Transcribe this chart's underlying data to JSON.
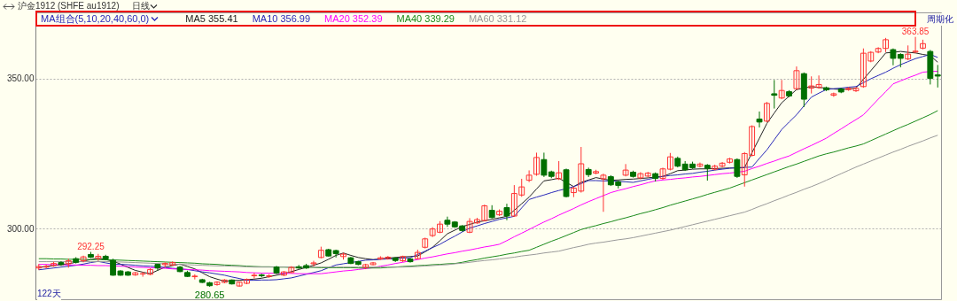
{
  "chart_data": {
    "type": "candlestick",
    "title": "沪金1912 (SHFE au1912)",
    "subtitle": "日线",
    "legend_title": "MA组合(5,10,20,40,60,0)",
    "legend": "top left",
    "tick_labels": "y",
    "grid": "y",
    "ylim": [
      276.5,
      372
    ],
    "yticks": [
      {
        "value": 300,
        "label": "300.00"
      },
      {
        "value": 350,
        "label": "350.00"
      }
    ],
    "annotations": [
      "周期化",
      "122天",
      {
        "text": "292.25",
        "y": 292.25
      },
      {
        "text": "280.65",
        "y": 280.65
      },
      {
        "text": "363.85",
        "y": 363.85
      }
    ],
    "categories": [
      null,
      null,
      null,
      null,
      null,
      null,
      null,
      null,
      null,
      null,
      null,
      null,
      null,
      null,
      null,
      null,
      null,
      null,
      null,
      null,
      null,
      null,
      null,
      null,
      null,
      null,
      null,
      null,
      null,
      null,
      null,
      null,
      null,
      null,
      null,
      null,
      null,
      null,
      null,
      null,
      null,
      null,
      null,
      null,
      null,
      null,
      null,
      null,
      null,
      null,
      null,
      null,
      null,
      null,
      null,
      null,
      null,
      null,
      null,
      null,
      null,
      null,
      null,
      null,
      null,
      null,
      null,
      null,
      null,
      null,
      null,
      null,
      null,
      null,
      null,
      null,
      null,
      null,
      null,
      null,
      null,
      null,
      null,
      null,
      null,
      null,
      null,
      null,
      null,
      null,
      null,
      null,
      null,
      null,
      null,
      null,
      null,
      null,
      null,
      null,
      null,
      null,
      null,
      null,
      null,
      null,
      null,
      null,
      null,
      null,
      null,
      null,
      null,
      null,
      null,
      null,
      null,
      null,
      null,
      null,
      null,
      null
    ],
    "ohlc": [
      [
        286.9,
        288.2,
        286.2,
        287.4
      ],
      [
        287.2,
        288.0,
        286.8,
        287.4
      ],
      [
        287.7,
        289.0,
        287.3,
        288.4
      ],
      [
        288.7,
        289.2,
        287.6,
        288.0
      ],
      [
        288.3,
        290.0,
        287.0,
        289.3
      ],
      [
        290.0,
        290.5,
        288.4,
        288.8
      ],
      [
        289.3,
        291.0,
        288.8,
        290.6
      ],
      [
        291.4,
        292.25,
        290.2,
        290.5
      ],
      [
        290.1,
        291.6,
        289.3,
        290.8
      ],
      [
        290.8,
        291.3,
        289.5,
        289.9
      ],
      [
        289.4,
        290.0,
        284.3,
        284.5
      ],
      [
        285.9,
        286.2,
        284.3,
        284.5
      ],
      [
        285.6,
        285.9,
        284.3,
        284.5
      ],
      [
        284.6,
        285.6,
        284.3,
        285.3
      ],
      [
        284.9,
        285.6,
        284.0,
        285.0
      ],
      [
        284.8,
        286.8,
        284.5,
        286.4
      ],
      [
        288.1,
        288.3,
        286.0,
        286.9
      ],
      [
        288.0,
        288.8,
        287.1,
        288.4
      ],
      [
        287.9,
        289.1,
        287.6,
        288.7
      ],
      [
        287.2,
        287.6,
        285.5,
        285.7
      ],
      [
        285.4,
        286.0,
        283.9,
        284.1
      ],
      [
        284.0,
        284.8,
        283.1,
        284.2
      ],
      [
        283.0,
        283.3,
        281.9,
        282.1
      ],
      [
        282.0,
        282.3,
        280.65,
        281.0
      ],
      [
        281.4,
        282.5,
        281.0,
        282.2
      ],
      [
        282.1,
        283.2,
        281.8,
        282.9
      ],
      [
        282.9,
        283.1,
        281.4,
        281.6
      ],
      [
        280.9,
        282.4,
        280.7,
        282.2
      ],
      [
        281.8,
        283.4,
        281.5,
        283.1
      ],
      [
        284.3,
        285.3,
        283.4,
        284.5
      ],
      [
        284.6,
        285.0,
        283.8,
        284.3
      ],
      [
        284.1,
        284.9,
        283.6,
        284.3
      ],
      [
        287.2,
        287.6,
        284.9,
        285.2
      ],
      [
        284.5,
        285.9,
        284.2,
        285.6
      ],
      [
        285.4,
        287.5,
        285.2,
        287.1
      ],
      [
        287.3,
        287.9,
        286.6,
        286.9
      ],
      [
        287.7,
        288.3,
        286.6,
        286.9
      ],
      [
        288.3,
        289.3,
        287.4,
        288.6
      ],
      [
        290.4,
        294.0,
        290.1,
        292.8
      ],
      [
        293.0,
        293.3,
        290.7,
        290.9
      ],
      [
        292.7,
        293.0,
        290.4,
        291.7
      ],
      [
        290.7,
        292.0,
        289.7,
        291.5
      ],
      [
        290.3,
        290.6,
        288.2,
        288.4
      ],
      [
        289.0,
        289.3,
        287.8,
        288.1
      ],
      [
        287.1,
        288.3,
        286.5,
        288.0
      ],
      [
        288.0,
        288.9,
        287.8,
        288.6
      ],
      [
        289.9,
        290.8,
        289.6,
        290.3
      ],
      [
        290.0,
        290.9,
        289.7,
        290.5
      ],
      [
        290.2,
        290.5,
        288.9,
        289.4
      ],
      [
        289.3,
        291.0,
        288.9,
        290.7
      ],
      [
        289.9,
        290.2,
        288.7,
        289.0
      ],
      [
        290.0,
        293.0,
        289.8,
        292.1
      ],
      [
        293.8,
        297.0,
        293.4,
        296.6
      ],
      [
        297.7,
        300.5,
        297.2,
        299.9
      ],
      [
        298.8,
        302.5,
        298.5,
        301.5
      ],
      [
        302.8,
        304.0,
        300.6,
        301.5
      ],
      [
        302.2,
        302.5,
        300.3,
        300.6
      ],
      [
        300.9,
        301.2,
        299.0,
        299.4
      ],
      [
        298.8,
        303.5,
        298.5,
        302.4
      ],
      [
        301.9,
        303.6,
        301.6,
        303.0
      ],
      [
        302.7,
        308.0,
        302.4,
        307.6
      ],
      [
        306.1,
        307.8,
        303.4,
        303.7
      ],
      [
        304.6,
        306.4,
        304.2,
        305.8
      ],
      [
        307.0,
        308.3,
        302.8,
        304.2
      ],
      [
        304.2,
        314.5,
        303.9,
        311.7
      ],
      [
        311.2,
        316.6,
        310.6,
        313.9
      ],
      [
        316.1,
        319.4,
        315.5,
        317.8
      ],
      [
        318.1,
        325.3,
        317.6,
        323.7
      ],
      [
        323.0,
        325.3,
        317.2,
        317.8
      ],
      [
        318.9,
        319.3,
        316.8,
        317.4
      ],
      [
        316.6,
        322.5,
        316.2,
        318.6
      ],
      [
        319.6,
        320.0,
        310.4,
        310.7
      ],
      [
        312.0,
        314.0,
        310.5,
        313.5
      ],
      [
        312.5,
        327.2,
        312.0,
        321.6
      ],
      [
        319.7,
        320.3,
        317.2,
        318.0
      ],
      [
        318.5,
        319.6,
        318.1,
        319.0
      ],
      [
        316.6,
        318.3,
        305.6,
        317.8
      ],
      [
        317.3,
        317.8,
        314.2,
        314.6
      ],
      [
        315.6,
        316.0,
        313.4,
        314.4
      ],
      [
        317.8,
        321.5,
        317.4,
        319.5
      ],
      [
        318.8,
        319.3,
        317.0,
        317.4
      ],
      [
        316.9,
        318.8,
        316.4,
        318.3
      ],
      [
        317.5,
        318.9,
        317.1,
        318.5
      ],
      [
        318.3,
        318.7,
        315.7,
        316.7
      ],
      [
        316.7,
        320.3,
        316.3,
        319.9
      ],
      [
        319.8,
        325.2,
        319.4,
        323.9
      ],
      [
        323.4,
        324.0,
        320.4,
        320.8
      ],
      [
        321.5,
        322.5,
        319.2,
        319.6
      ],
      [
        321.5,
        322.3,
        319.9,
        320.3
      ],
      [
        320.8,
        322.0,
        320.4,
        321.5
      ],
      [
        321.1,
        321.5,
        316.0,
        320.1
      ],
      [
        319.8,
        321.3,
        319.4,
        320.8
      ],
      [
        320.8,
        322.2,
        320.4,
        321.8
      ],
      [
        322.1,
        323.6,
        321.7,
        323.2
      ],
      [
        323.0,
        323.4,
        316.9,
        317.4
      ],
      [
        317.9,
        325.5,
        314.0,
        325.0
      ],
      [
        324.4,
        334.4,
        324.0,
        334.0
      ],
      [
        336.5,
        339.0,
        333.7,
        335.5
      ],
      [
        335.8,
        342.2,
        335.4,
        341.7
      ],
      [
        344.9,
        349.5,
        340.0,
        344.4
      ],
      [
        343.5,
        349.5,
        343.1,
        346.0
      ],
      [
        345.6,
        346.1,
        343.8,
        344.2
      ],
      [
        346.6,
        354.0,
        346.2,
        352.6
      ],
      [
        351.6,
        352.0,
        340.5,
        343.1
      ],
      [
        346.8,
        350.7,
        345.0,
        347.5
      ],
      [
        347.0,
        351.0,
        346.6,
        348.0
      ],
      [
        346.9,
        347.3,
        345.8,
        346.2
      ],
      [
        344.4,
        345.3,
        343.9,
        344.9
      ],
      [
        346.5,
        346.9,
        345.1,
        345.5
      ],
      [
        346.3,
        347.1,
        345.9,
        346.7
      ],
      [
        345.9,
        347.1,
        345.5,
        346.7
      ],
      [
        347.3,
        360.0,
        346.9,
        358.4
      ],
      [
        355.8,
        359.1,
        355.4,
        358.7
      ],
      [
        358.8,
        360.4,
        358.4,
        360.0
      ],
      [
        360.0,
        363.5,
        358.8,
        362.9
      ],
      [
        359.6,
        360.0,
        354.4,
        356.7
      ],
      [
        358.0,
        358.4,
        353.7,
        356.7
      ],
      [
        356.5,
        361.0,
        356.1,
        358.1
      ],
      [
        358.8,
        363.85,
        358.4,
        359.1
      ],
      [
        360.1,
        362.9,
        359.7,
        361.6
      ],
      [
        359.0,
        359.5,
        348.0,
        350.0
      ],
      [
        351.2,
        354.5,
        347.0,
        350.8
      ]
    ],
    "colors": [
      "#ff3333",
      "#ff3333",
      "#ff3333",
      "#006f00",
      "#ff3333",
      "#006f00",
      "#ff3333",
      "#006f00",
      "#ff3333",
      "#006f00",
      "#006f00",
      "#006f00",
      "#006f00",
      "#ff3333",
      "#ff3333",
      "#ff3333",
      "#006f00",
      "#ff3333",
      "#ff3333",
      "#006f00",
      "#006f00",
      "#ff3333",
      "#006f00",
      "#006f00",
      "#ff3333",
      "#ff3333",
      "#006f00",
      "#ff3333",
      "#ff3333",
      "#ff3333",
      "#006f00",
      "#ff3333",
      "#006f00",
      "#ff3333",
      "#ff3333",
      "#006f00",
      "#006f00",
      "#ff3333",
      "#ff3333",
      "#006f00",
      "#006f00",
      "#ff3333",
      "#006f00",
      "#006f00",
      "#ff3333",
      "#ff3333",
      "#ff3333",
      "#ff3333",
      "#006f00",
      "#ff3333",
      "#006f00",
      "#ff3333",
      "#ff3333",
      "#ff3333",
      "#ff3333",
      "#006f00",
      "#006f00",
      "#006f00",
      "#ff3333",
      "#ff3333",
      "#ff3333",
      "#006f00",
      "#ff3333",
      "#006f00",
      "#ff3333",
      "#ff3333",
      "#ff3333",
      "#ff3333",
      "#006f00",
      "#006f00",
      "#ff3333",
      "#006f00",
      "#ff3333",
      "#ff3333",
      "#006f00",
      "#ff3333",
      "#ff3333",
      "#006f00",
      "#006f00",
      "#ff3333",
      "#006f00",
      "#ff3333",
      "#ff3333",
      "#006f00",
      "#ff3333",
      "#ff3333",
      "#006f00",
      "#006f00",
      "#006f00",
      "#ff3333",
      "#006f00",
      "#ff3333",
      "#ff3333",
      "#ff3333",
      "#006f00",
      "#ff3333",
      "#ff3333",
      "#006f00",
      "#ff3333",
      "#006f00",
      "#ff3333",
      "#006f00",
      "#ff3333",
      "#006f00",
      "#ff3333",
      "#ff3333",
      "#006f00",
      "#ff3333",
      "#006f00",
      "#ff3333",
      "#ff3333",
      "#ff3333",
      "#ff3333",
      "#ff3333",
      "#ff3333",
      "#006f00",
      "#006f00",
      "#ff3333",
      "#ff3333",
      "#ff3333",
      "#006f00",
      "#006f00"
    ],
    "series": [
      {
        "name": "MA5 355.41",
        "type": "line",
        "color": "#222222",
        "values": [
          287.1,
          287.4,
          287.7,
          288.0,
          288.3,
          288.8,
          289.2,
          289.7,
          290.2,
          289.7,
          289.2,
          288.2,
          287.1,
          286.1,
          285.5,
          285.0,
          286.1,
          287.2,
          287.7,
          288.2,
          287.4,
          286.6,
          285.3,
          284.0,
          283.2,
          282.5,
          282.7,
          282.8,
          283.0,
          283.2,
          283.5,
          284.0,
          284.5,
          285.0,
          285.7,
          286.4,
          287.1,
          287.8,
          288.6,
          289.8,
          291.1,
          291.9,
          291.1,
          290.4,
          290.0,
          289.7,
          289.9,
          290.2,
          290.4,
          290.6,
          290.7,
          290.9,
          292.3,
          293.8,
          296.0,
          298.3,
          299.5,
          300.7,
          301.4,
          302.2,
          302.6,
          303.1,
          303.6,
          304.1,
          306.1,
          308.3,
          310.5,
          313.2,
          315.9,
          316.3,
          316.8,
          315.4,
          314.0,
          315.4,
          316.2,
          317.0,
          316.5,
          316.1,
          316.2,
          316.4,
          316.5,
          316.7,
          316.9,
          317.2,
          317.4,
          318.3,
          319.3,
          319.5,
          319.8,
          319.9,
          319.9,
          320.0,
          320.1,
          320.2,
          320.2,
          320.3,
          325.3,
          330.1,
          335.0,
          338.5,
          341.9,
          344.1,
          346.3,
          346.8,
          347.3,
          347.0,
          346.8,
          346.5,
          346.3,
          346.5,
          346.8,
          349.7,
          352.6,
          355.5,
          358.5,
          358.7,
          359.0,
          358.7,
          358.5,
          358.0,
          357.6,
          355.4
        ]
      },
      {
        "name": "MA10 356.99",
        "type": "line",
        "color": "#2929b8",
        "values": [
          286.3,
          286.6,
          286.9,
          287.2,
          287.5,
          287.8,
          288.2,
          288.7,
          289.1,
          288.6,
          288.2,
          288.1,
          288.0,
          287.8,
          287.6,
          287.5,
          287.3,
          287.1,
          286.8,
          286.6,
          286.4,
          286.0,
          285.6,
          285.3,
          284.9,
          284.5,
          283.9,
          283.4,
          282.8,
          282.8,
          282.9,
          282.9,
          283.0,
          283.3,
          283.6,
          284.2,
          284.8,
          285.4,
          286.0,
          287.0,
          287.9,
          288.3,
          288.7,
          289.1,
          289.5,
          289.6,
          289.8,
          289.9,
          290.0,
          290.2,
          290.3,
          291.4,
          292.5,
          293.7,
          294.8,
          296.2,
          297.5,
          298.9,
          300.2,
          300.9,
          301.7,
          302.4,
          303.1,
          303.6,
          304.1,
          306.9,
          309.7,
          310.5,
          311.2,
          312.0,
          312.7,
          313.3,
          314.0,
          315.0,
          316.0,
          316.0,
          315.9,
          315.9,
          315.7,
          315.6,
          315.4,
          315.9,
          316.4,
          316.9,
          317.4,
          317.7,
          317.9,
          318.2,
          318.4,
          318.8,
          319.1,
          319.5,
          319.8,
          320.1,
          320.3,
          320.4,
          320.5,
          323.4,
          326.2,
          329.6,
          333.0,
          335.5,
          337.9,
          340.9,
          343.8,
          345.1,
          346.3,
          346.6,
          346.8,
          347.1,
          347.3,
          348.6,
          349.9,
          351.0,
          352.1,
          353.4,
          354.6,
          355.6,
          356.6,
          357.3,
          358.0,
          357.0
        ]
      },
      {
        "name": "MA20 352.39",
        "type": "line",
        "color": "#ff00ff",
        "values": [
          288.1,
          288.1,
          288.0,
          288.0,
          287.9,
          287.9,
          287.8,
          287.8,
          287.7,
          287.7,
          287.6,
          287.5,
          287.4,
          287.2,
          287.1,
          287.0,
          286.9,
          286.8,
          286.6,
          286.5,
          286.4,
          286.3,
          286.2,
          286.0,
          285.9,
          285.8,
          285.7,
          285.6,
          285.4,
          285.3,
          285.2,
          285.2,
          285.1,
          285.1,
          285.1,
          285.0,
          285.0,
          285.0,
          285.0,
          285.3,
          285.6,
          285.9,
          286.1,
          286.4,
          286.7,
          287.0,
          287.5,
          287.9,
          288.4,
          288.8,
          289.3,
          289.7,
          290.2,
          290.6,
          291.1,
          291.6,
          292.0,
          292.5,
          292.9,
          293.4,
          293.9,
          294.3,
          294.8,
          296.0,
          297.3,
          298.5,
          299.7,
          301.0,
          302.2,
          303.3,
          304.5,
          305.6,
          306.7,
          307.9,
          309.0,
          310.0,
          311.0,
          312.0,
          312.7,
          313.3,
          314.0,
          314.6,
          315.3,
          315.9,
          316.2,
          316.4,
          316.7,
          316.9,
          317.2,
          317.4,
          317.7,
          318.0,
          318.3,
          318.5,
          318.8,
          319.1,
          320.0,
          320.8,
          321.7,
          322.5,
          323.4,
          324.2,
          325.4,
          326.6,
          327.7,
          328.9,
          330.1,
          331.7,
          333.2,
          334.8,
          336.3,
          337.9,
          340.5,
          343.1,
          345.6,
          348.2,
          349.2,
          350.2,
          351.1,
          352.1,
          352.3,
          352.4
        ]
      },
      {
        "name": "MA40 339.29",
        "type": "line",
        "color": "#1a8a1a",
        "values": [
          290.0,
          290.0,
          289.9,
          289.9,
          289.8,
          289.8,
          289.8,
          289.7,
          289.7,
          289.6,
          289.6,
          289.5,
          289.4,
          289.3,
          289.2,
          289.1,
          289.0,
          288.9,
          288.8,
          288.7,
          288.6,
          288.5,
          288.3,
          288.2,
          288.1,
          287.9,
          287.8,
          287.7,
          287.5,
          287.4,
          287.3,
          287.3,
          287.2,
          287.2,
          287.1,
          287.1,
          287.1,
          287.1,
          287.0,
          287.0,
          287.0,
          287.0,
          287.0,
          286.9,
          286.9,
          286.9,
          286.9,
          287.1,
          287.2,
          287.4,
          287.5,
          287.7,
          287.8,
          288.0,
          288.1,
          288.3,
          288.4,
          288.8,
          289.3,
          289.7,
          290.2,
          290.6,
          291.0,
          291.5,
          291.9,
          292.4,
          292.8,
          293.8,
          294.8,
          295.8,
          296.7,
          297.7,
          298.7,
          299.7,
          300.4,
          301.0,
          301.7,
          302.3,
          303.0,
          303.6,
          304.3,
          305.0,
          305.6,
          306.3,
          307.0,
          307.8,
          308.5,
          309.2,
          309.9,
          310.6,
          311.4,
          312.1,
          312.8,
          313.5,
          314.4,
          315.3,
          316.2,
          317.1,
          318.0,
          318.9,
          319.8,
          320.7,
          321.5,
          322.4,
          323.3,
          324.2,
          324.9,
          325.5,
          326.2,
          326.9,
          327.5,
          328.2,
          329.3,
          330.4,
          331.5,
          332.6,
          333.7,
          334.7,
          335.8,
          336.9,
          338.0,
          339.3
        ]
      },
      {
        "name": "MA60 331.12",
        "type": "line",
        "color": "#9a9a9a",
        "values": [
          289.0,
          289.0,
          289.0,
          289.0,
          289.0,
          289.0,
          289.0,
          289.0,
          289.0,
          289.0,
          289.0,
          288.9,
          288.8,
          288.7,
          288.6,
          288.5,
          288.4,
          288.3,
          288.2,
          288.1,
          288.0,
          287.9,
          287.8,
          287.7,
          287.6,
          287.6,
          287.5,
          287.4,
          287.3,
          287.2,
          287.2,
          287.2,
          287.2,
          287.2,
          287.2,
          287.2,
          287.2,
          287.2,
          287.2,
          287.2,
          287.2,
          287.2,
          287.2,
          287.2,
          287.2,
          287.2,
          287.2,
          287.2,
          287.2,
          287.2,
          287.3,
          287.4,
          287.6,
          287.7,
          287.9,
          288.0,
          288.3,
          288.5,
          288.8,
          289.1,
          289.4,
          289.6,
          289.9,
          290.2,
          290.5,
          290.9,
          291.2,
          291.5,
          291.9,
          292.2,
          292.5,
          293.1,
          293.7,
          294.2,
          294.8,
          295.2,
          295.5,
          295.9,
          296.3,
          296.6,
          297.0,
          297.5,
          298.0,
          298.5,
          299.0,
          299.5,
          300.1,
          300.7,
          301.3,
          301.9,
          302.5,
          303.1,
          303.7,
          304.3,
          304.9,
          305.5,
          306.4,
          307.4,
          308.3,
          309.3,
          310.2,
          311.2,
          312.1,
          313.1,
          314.0,
          315.0,
          316.1,
          317.2,
          318.3,
          319.4,
          320.5,
          321.5,
          322.5,
          323.5,
          324.5,
          325.5,
          326.4,
          327.4,
          328.3,
          329.2,
          330.2,
          331.1
        ]
      }
    ]
  }
}
